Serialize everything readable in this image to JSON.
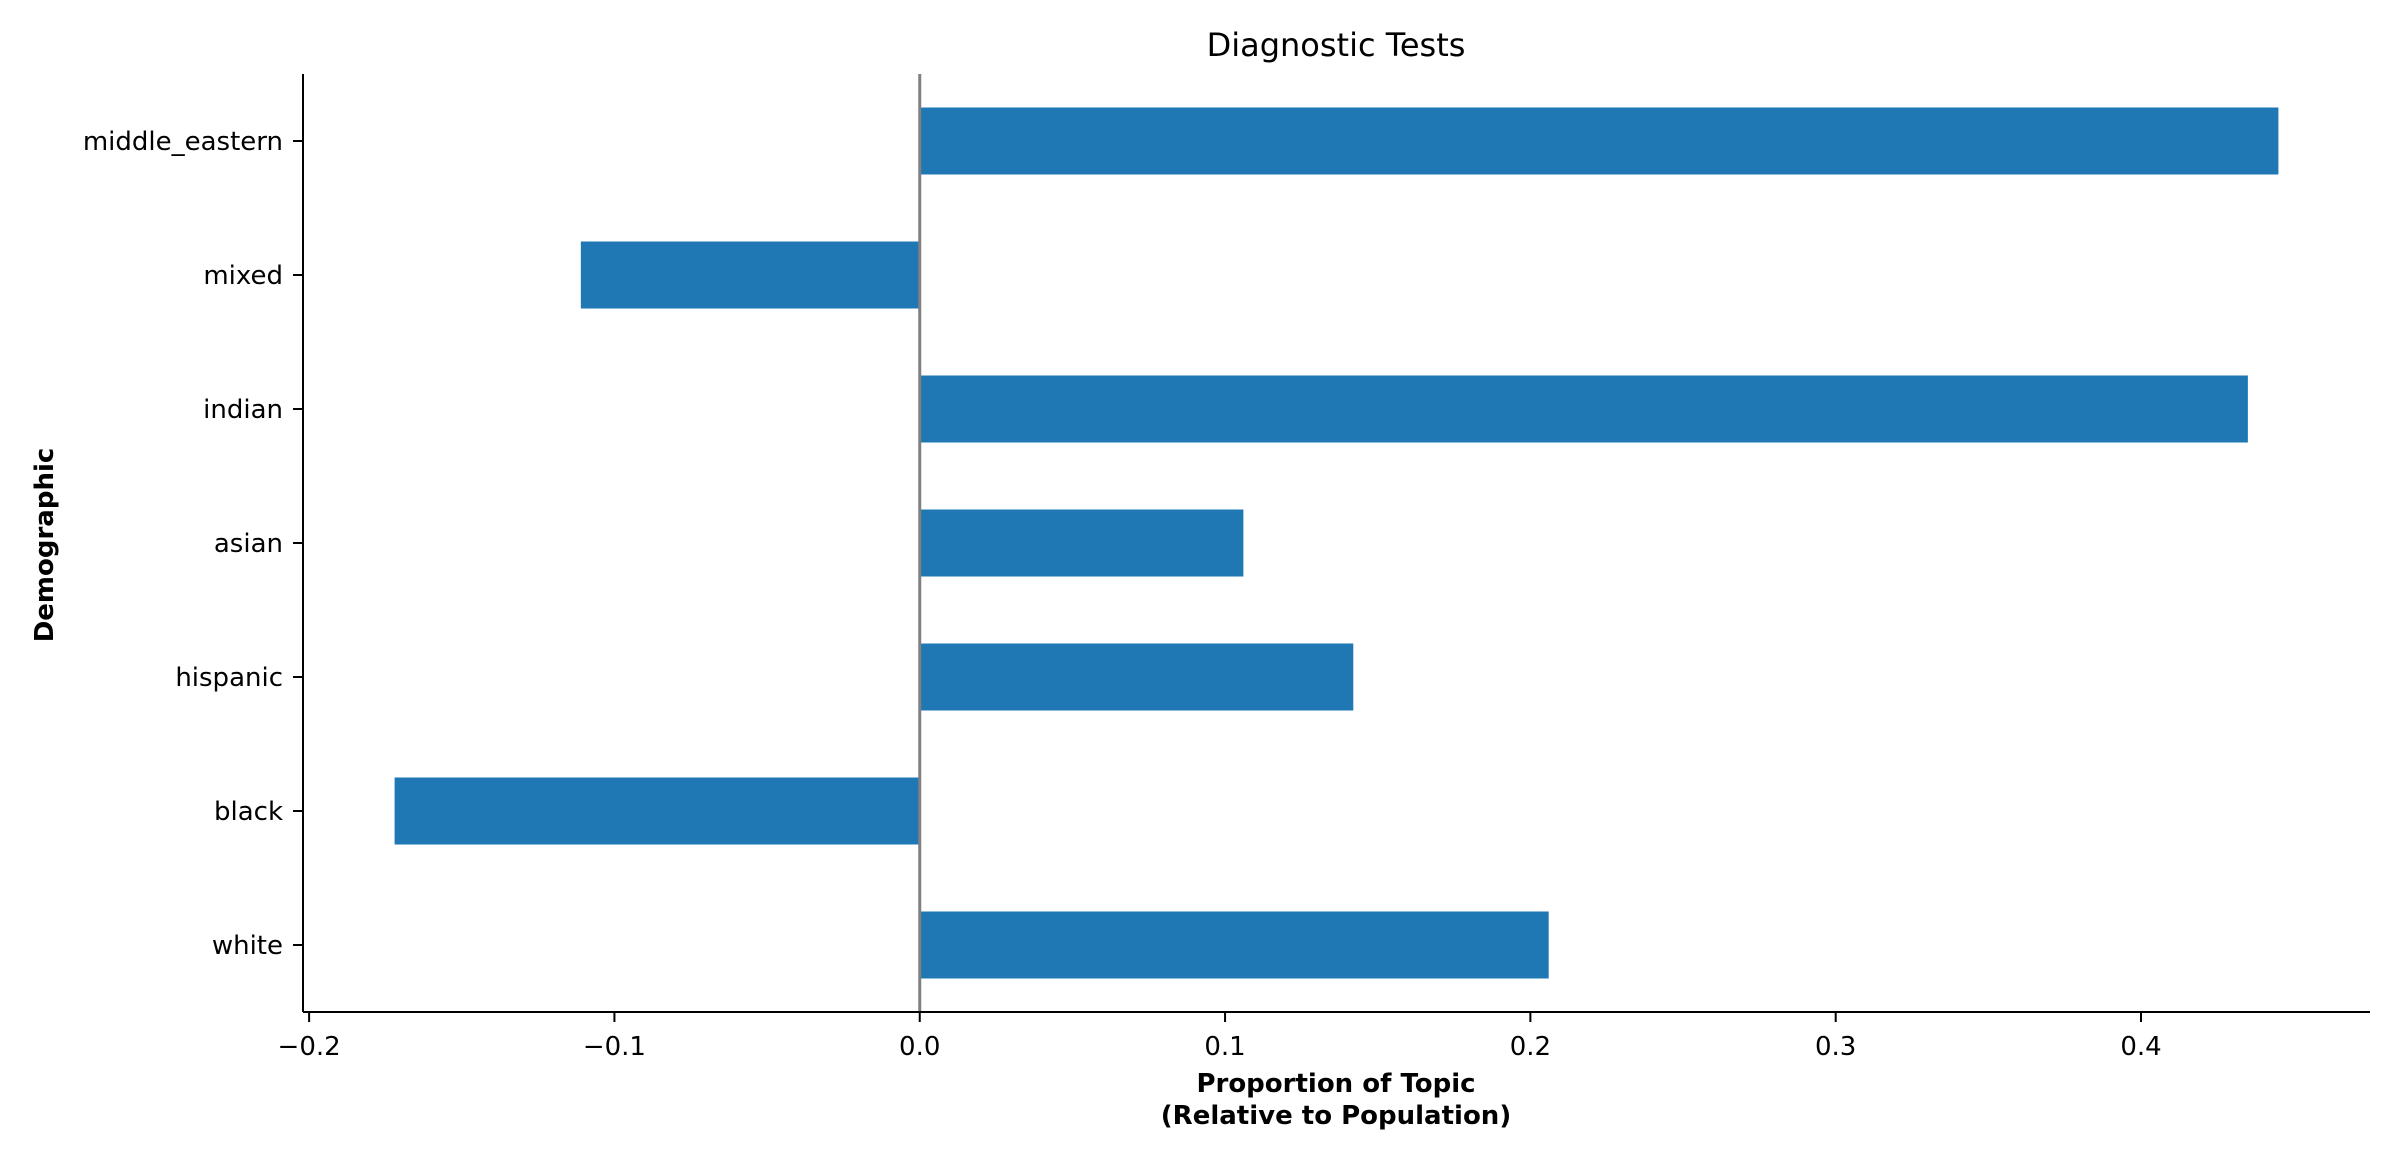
{
  "colors": {
    "bar": "#1f77b4",
    "axis": "#000000",
    "zero_line": "#808080"
  },
  "chart_data": {
    "type": "bar",
    "orientation": "horizontal",
    "title": "Diagnostic Tests",
    "xlabel_lines": [
      "Proportion of Topic",
      "(Relative to Population)"
    ],
    "ylabel": "Demographic",
    "categories": [
      "white",
      "black",
      "hispanic",
      "asian",
      "indian",
      "mixed",
      "middle_eastern"
    ],
    "values": [
      0.206,
      -0.172,
      0.142,
      0.106,
      0.435,
      -0.111,
      0.445
    ],
    "xlim": [
      -0.202,
      0.475
    ],
    "xticks": [
      -0.2,
      -0.1,
      0.0,
      0.1,
      0.2,
      0.3,
      0.4
    ],
    "xtick_labels": [
      "−0.2",
      "−0.1",
      "0.0",
      "0.1",
      "0.2",
      "0.3",
      "0.4"
    ],
    "zero_line": true,
    "grid": false,
    "legend": "none"
  }
}
